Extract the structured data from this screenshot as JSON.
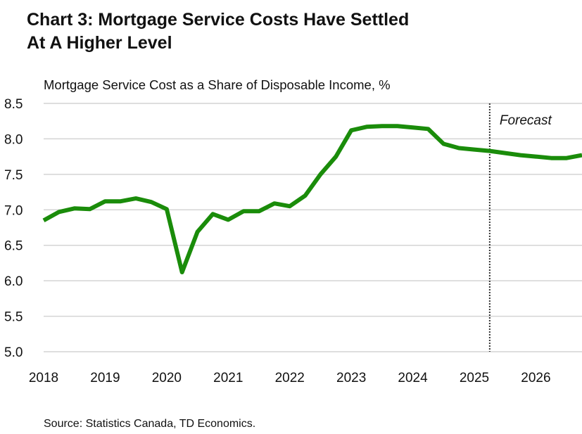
{
  "chart_data": {
    "type": "line",
    "title_lines": [
      "Chart 3: Mortgage Service Costs Have Settled",
      "At A Higher Level"
    ],
    "subtitle": "Mortgage Service Cost as a Share of Disposable Income, %",
    "source": "Source: Statistics Canada, TD Economics.",
    "x_tick_labels": [
      "2018",
      "2019",
      "2020",
      "2021",
      "2022",
      "2023",
      "2024",
      "2025",
      "2026"
    ],
    "y_tick_labels": [
      "5.0",
      "5.5",
      "6.0",
      "6.5",
      "7.0",
      "7.5",
      "8.0",
      "8.5"
    ],
    "ylim": [
      5.0,
      8.5
    ],
    "xlim": [
      2018.0,
      2026.75
    ],
    "forecast_start": 2025.25,
    "forecast_label": "Forecast",
    "series": [
      {
        "name": "Mortgage Service Cost as a Share of Disposable Income",
        "color": "#1a8c0a",
        "x": [
          2018.0,
          2018.25,
          2018.5,
          2018.75,
          2019.0,
          2019.25,
          2019.5,
          2019.75,
          2020.0,
          2020.25,
          2020.5,
          2020.75,
          2021.0,
          2021.25,
          2021.5,
          2021.75,
          2022.0,
          2022.25,
          2022.5,
          2022.75,
          2023.0,
          2023.25,
          2023.5,
          2023.75,
          2024.0,
          2024.25,
          2024.5,
          2024.75,
          2025.0,
          2025.25,
          2025.5,
          2025.75,
          2026.0,
          2026.25,
          2026.5,
          2026.75
        ],
        "values": [
          6.85,
          6.97,
          7.02,
          7.01,
          7.12,
          7.12,
          7.16,
          7.11,
          7.01,
          6.12,
          6.69,
          6.94,
          6.86,
          6.98,
          6.98,
          7.09,
          7.05,
          7.2,
          7.5,
          7.75,
          8.12,
          8.17,
          8.18,
          8.18,
          8.16,
          8.14,
          7.93,
          7.87,
          7.85,
          7.83,
          7.8,
          7.77,
          7.75,
          7.73,
          7.73,
          7.77
        ]
      }
    ]
  }
}
